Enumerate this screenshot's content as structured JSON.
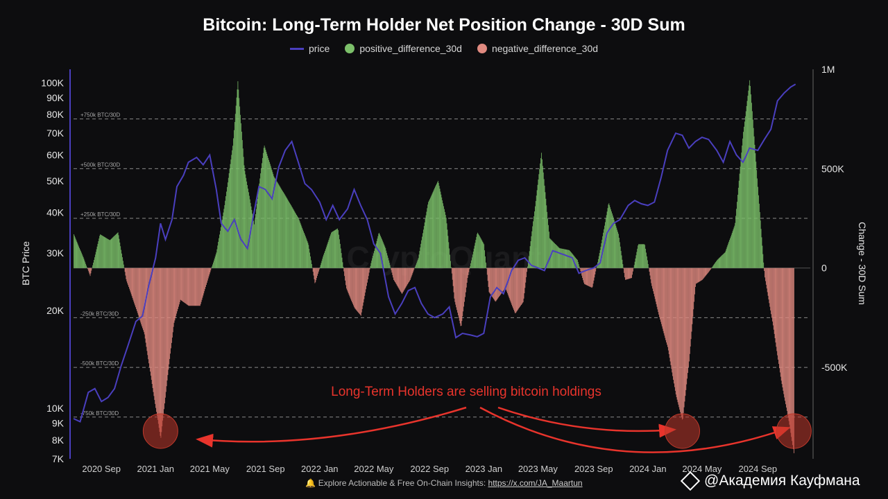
{
  "chart_data": {
    "type": "bar",
    "title": "Bitcoin: Long-Term Holder Net Position Change - 30D Sum",
    "legend": [
      {
        "name": "price",
        "color": "#4a3fbf",
        "kind": "line"
      },
      {
        "name": "positive_difference_30d",
        "color": "#7cc06a",
        "kind": "bar"
      },
      {
        "name": "negative_difference_30d",
        "color": "#e08a80",
        "kind": "bar"
      }
    ],
    "ylabel_left": "BTC Price",
    "ylabel_right": "Change - 30D Sum",
    "left_axis": {
      "scale": "log",
      "ylim": [
        7000,
        110000
      ],
      "ticks": [
        {
          "v": 100000,
          "label": "100K"
        },
        {
          "v": 90000,
          "label": "90K"
        },
        {
          "v": 80000,
          "label": "80K"
        },
        {
          "v": 70000,
          "label": "70K"
        },
        {
          "v": 60000,
          "label": "60K"
        },
        {
          "v": 50000,
          "label": "50K"
        },
        {
          "v": 40000,
          "label": "40K"
        },
        {
          "v": 30000,
          "label": "30K"
        },
        {
          "v": 20000,
          "label": "20K"
        },
        {
          "v": 10000,
          "label": "10K"
        },
        {
          "v": 9000,
          "label": "9K"
        },
        {
          "v": 8000,
          "label": "8K"
        },
        {
          "v": 7000,
          "label": "7K"
        }
      ]
    },
    "right_axis": {
      "ylim": [
        -960000,
        1000000
      ],
      "ticks": [
        {
          "v": 1000000,
          "label": "1M"
        },
        {
          "v": 500000,
          "label": "500K"
        },
        {
          "v": 0,
          "label": "0"
        },
        {
          "v": -500000,
          "label": "-500K"
        }
      ]
    },
    "x_axis": {
      "range": [
        2020.5,
        2024.99
      ],
      "ticks": [
        {
          "v": 2020.67,
          "label": "2020 Sep"
        },
        {
          "v": 2021.0,
          "label": "2021 Jan"
        },
        {
          "v": 2021.33,
          "label": "2021 May"
        },
        {
          "v": 2021.67,
          "label": "2021 Sep"
        },
        {
          "v": 2022.0,
          "label": "2022 Jan"
        },
        {
          "v": 2022.33,
          "label": "2022 May"
        },
        {
          "v": 2022.67,
          "label": "2022 Sep"
        },
        {
          "v": 2023.0,
          "label": "2023 Jan"
        },
        {
          "v": 2023.33,
          "label": "2023 May"
        },
        {
          "v": 2023.67,
          "label": "2023 Sep"
        },
        {
          "v": 2024.0,
          "label": "2024 Jan"
        },
        {
          "v": 2024.33,
          "label": "2024 May"
        },
        {
          "v": 2024.67,
          "label": "2024 Sep"
        }
      ]
    },
    "reference_lines": [
      {
        "v": 750000,
        "label": "+750k BTC/30D"
      },
      {
        "v": 500000,
        "label": "+500k BTC/30D"
      },
      {
        "v": 250000,
        "label": "+250k BTC/30D"
      },
      {
        "v": -250000,
        "label": "-250k BTC/30D"
      },
      {
        "v": -500000,
        "label": "-500k BTC/30D"
      },
      {
        "v": -750000,
        "label": "-750k BTC/30D"
      }
    ],
    "net_position_change_30d": [
      [
        2020.5,
        170000
      ],
      [
        2020.56,
        50000
      ],
      [
        2020.6,
        -40000
      ],
      [
        2020.66,
        170000
      ],
      [
        2020.72,
        140000
      ],
      [
        2020.77,
        180000
      ],
      [
        2020.82,
        -60000
      ],
      [
        2020.87,
        -180000
      ],
      [
        2020.93,
        -330000
      ],
      [
        2020.98,
        -600000
      ],
      [
        2021.03,
        -860000
      ],
      [
        2021.07,
        -560000
      ],
      [
        2021.11,
        -280000
      ],
      [
        2021.15,
        -160000
      ],
      [
        2021.2,
        -190000
      ],
      [
        2021.27,
        -190000
      ],
      [
        2021.32,
        -50000
      ],
      [
        2021.37,
        80000
      ],
      [
        2021.42,
        320000
      ],
      [
        2021.47,
        620000
      ],
      [
        2021.5,
        940000
      ],
      [
        2021.54,
        500000
      ],
      [
        2021.6,
        220000
      ],
      [
        2021.66,
        620000
      ],
      [
        2021.72,
        460000
      ],
      [
        2021.8,
        350000
      ],
      [
        2021.87,
        250000
      ],
      [
        2021.93,
        120000
      ],
      [
        2021.97,
        -80000
      ],
      [
        2022.02,
        60000
      ],
      [
        2022.07,
        180000
      ],
      [
        2022.11,
        200000
      ],
      [
        2022.16,
        -100000
      ],
      [
        2022.21,
        -200000
      ],
      [
        2022.25,
        -240000
      ],
      [
        2022.31,
        20000
      ],
      [
        2022.36,
        180000
      ],
      [
        2022.4,
        100000
      ],
      [
        2022.45,
        -60000
      ],
      [
        2022.5,
        -130000
      ],
      [
        2022.55,
        -60000
      ],
      [
        2022.6,
        50000
      ],
      [
        2022.66,
        330000
      ],
      [
        2022.72,
        440000
      ],
      [
        2022.77,
        250000
      ],
      [
        2022.82,
        -160000
      ],
      [
        2022.86,
        -300000
      ],
      [
        2022.9,
        -50000
      ],
      [
        2022.96,
        180000
      ],
      [
        2023.0,
        120000
      ],
      [
        2023.03,
        -120000
      ],
      [
        2023.07,
        -170000
      ],
      [
        2023.13,
        -100000
      ],
      [
        2023.19,
        -230000
      ],
      [
        2023.24,
        -170000
      ],
      [
        2023.27,
        40000
      ],
      [
        2023.31,
        300000
      ],
      [
        2023.35,
        580000
      ],
      [
        2023.4,
        150000
      ],
      [
        2023.46,
        100000
      ],
      [
        2023.52,
        90000
      ],
      [
        2023.57,
        40000
      ],
      [
        2023.61,
        -80000
      ],
      [
        2023.66,
        -100000
      ],
      [
        2023.71,
        100000
      ],
      [
        2023.76,
        330000
      ],
      [
        2023.82,
        170000
      ],
      [
        2023.86,
        -60000
      ],
      [
        2023.9,
        -50000
      ],
      [
        2023.94,
        120000
      ],
      [
        2023.98,
        120000
      ],
      [
        2024.02,
        -80000
      ],
      [
        2024.07,
        -250000
      ],
      [
        2024.12,
        -400000
      ],
      [
        2024.17,
        -640000
      ],
      [
        2024.21,
        -770000
      ],
      [
        2024.25,
        -470000
      ],
      [
        2024.29,
        -80000
      ],
      [
        2024.33,
        -60000
      ],
      [
        2024.37,
        -20000
      ],
      [
        2024.42,
        40000
      ],
      [
        2024.47,
        80000
      ],
      [
        2024.53,
        220000
      ],
      [
        2024.58,
        680000
      ],
      [
        2024.62,
        950000
      ],
      [
        2024.67,
        400000
      ],
      [
        2024.71,
        -40000
      ],
      [
        2024.76,
        -280000
      ],
      [
        2024.81,
        -560000
      ],
      [
        2024.86,
        -780000
      ],
      [
        2024.89,
        -940000
      ]
    ],
    "price": [
      [
        2020.5,
        9300
      ],
      [
        2020.54,
        9100
      ],
      [
        2020.59,
        11200
      ],
      [
        2020.63,
        11500
      ],
      [
        2020.67,
        10500
      ],
      [
        2020.71,
        10800
      ],
      [
        2020.75,
        11500
      ],
      [
        2020.79,
        13500
      ],
      [
        2020.83,
        15500
      ],
      [
        2020.88,
        18500
      ],
      [
        2020.92,
        19200
      ],
      [
        2020.96,
        24000
      ],
      [
        2021.0,
        29000
      ],
      [
        2021.03,
        37000
      ],
      [
        2021.06,
        33000
      ],
      [
        2021.1,
        38000
      ],
      [
        2021.13,
        48000
      ],
      [
        2021.17,
        52000
      ],
      [
        2021.2,
        57000
      ],
      [
        2021.25,
        59000
      ],
      [
        2021.29,
        56000
      ],
      [
        2021.33,
        60000
      ],
      [
        2021.37,
        47000
      ],
      [
        2021.4,
        37000
      ],
      [
        2021.44,
        35000
      ],
      [
        2021.48,
        38000
      ],
      [
        2021.52,
        33000
      ],
      [
        2021.56,
        31000
      ],
      [
        2021.6,
        40000
      ],
      [
        2021.63,
        48000
      ],
      [
        2021.67,
        47000
      ],
      [
        2021.71,
        44000
      ],
      [
        2021.75,
        55000
      ],
      [
        2021.79,
        62000
      ],
      [
        2021.83,
        66000
      ],
      [
        2021.87,
        57000
      ],
      [
        2021.91,
        49000
      ],
      [
        2021.95,
        47000
      ],
      [
        2022.0,
        43000
      ],
      [
        2022.04,
        38000
      ],
      [
        2022.08,
        42000
      ],
      [
        2022.12,
        38000
      ],
      [
        2022.17,
        41000
      ],
      [
        2022.21,
        47000
      ],
      [
        2022.25,
        42000
      ],
      [
        2022.29,
        38000
      ],
      [
        2022.33,
        32000
      ],
      [
        2022.37,
        30000
      ],
      [
        2022.42,
        22000
      ],
      [
        2022.46,
        19500
      ],
      [
        2022.5,
        21000
      ],
      [
        2022.54,
        23000
      ],
      [
        2022.58,
        23500
      ],
      [
        2022.62,
        21000
      ],
      [
        2022.66,
        19500
      ],
      [
        2022.7,
        19000
      ],
      [
        2022.75,
        19500
      ],
      [
        2022.79,
        20500
      ],
      [
        2022.83,
        16500
      ],
      [
        2022.87,
        17000
      ],
      [
        2022.92,
        16800
      ],
      [
        2022.96,
        16600
      ],
      [
        2023.0,
        17000
      ],
      [
        2023.04,
        22000
      ],
      [
        2023.08,
        23500
      ],
      [
        2023.12,
        22500
      ],
      [
        2023.17,
        26500
      ],
      [
        2023.21,
        28500
      ],
      [
        2023.25,
        29000
      ],
      [
        2023.29,
        27500
      ],
      [
        2023.33,
        27000
      ],
      [
        2023.37,
        26500
      ],
      [
        2023.42,
        30500
      ],
      [
        2023.46,
        30000
      ],
      [
        2023.5,
        29500
      ],
      [
        2023.54,
        29000
      ],
      [
        2023.58,
        26000
      ],
      [
        2023.62,
        26500
      ],
      [
        2023.67,
        27000
      ],
      [
        2023.71,
        28000
      ],
      [
        2023.75,
        34500
      ],
      [
        2023.79,
        37000
      ],
      [
        2023.83,
        38000
      ],
      [
        2023.88,
        42000
      ],
      [
        2023.92,
        43500
      ],
      [
        2023.96,
        42500
      ],
      [
        2024.0,
        42000
      ],
      [
        2024.04,
        43000
      ],
      [
        2024.08,
        51000
      ],
      [
        2024.12,
        62000
      ],
      [
        2024.17,
        70000
      ],
      [
        2024.21,
        69000
      ],
      [
        2024.25,
        63000
      ],
      [
        2024.29,
        66000
      ],
      [
        2024.33,
        68000
      ],
      [
        2024.37,
        67000
      ],
      [
        2024.42,
        62000
      ],
      [
        2024.46,
        57000
      ],
      [
        2024.5,
        66000
      ],
      [
        2024.54,
        60000
      ],
      [
        2024.58,
        57000
      ],
      [
        2024.62,
        63000
      ],
      [
        2024.67,
        62000
      ],
      [
        2024.71,
        67000
      ],
      [
        2024.75,
        72000
      ],
      [
        2024.79,
        88000
      ],
      [
        2024.83,
        93000
      ],
      [
        2024.87,
        97000
      ],
      [
        2024.9,
        99000
      ]
    ],
    "annotation": "Long-Term Holders are selling bitcoin holdings",
    "highlight_markers": [
      2021.03,
      2024.21,
      2024.89
    ],
    "watermark_text": "CryptoQuant"
  },
  "footer": {
    "text": "Explore Actionable & Free On-Chain Insights: ",
    "link": "https://x.com/JA_Maartun",
    "icon": "bell-icon"
  },
  "watermark": {
    "text": "@Академия Кауфмана",
    "icon": "binance-logo-icon"
  },
  "colors": {
    "price": "#4a3fbf",
    "positive": "#7cc06a",
    "negative": "#e08a80",
    "annotation": "#e8342c"
  }
}
